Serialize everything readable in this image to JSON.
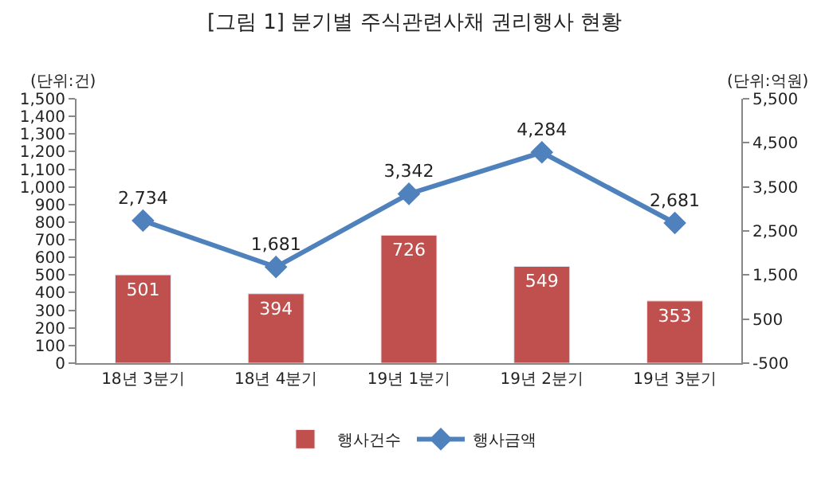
{
  "chart_data": {
    "type": "bar",
    "title": "[그림 1] 분기별 주식관련사채 권리행사 현황",
    "ylabel": "(단위:건)",
    "y2label": "(단위:억원)",
    "categories": [
      "18년 3분기",
      "18년 4분기",
      "19년 1분기",
      "19년 2분기",
      "19년 3분기"
    ],
    "series": [
      {
        "name": "행사건수",
        "color": "#c0504d",
        "values": [
          501,
          394,
          726,
          549,
          353
        ],
        "value_labels": [
          "501",
          "394",
          "726",
          "549",
          "353"
        ]
      },
      {
        "name": "행사금액",
        "type": "line",
        "axis": "y2",
        "color": "#4f81bd",
        "marker": "diamond",
        "values": [
          2734,
          1681,
          3342,
          4284,
          2681
        ],
        "value_labels": [
          "2,734",
          "1,681",
          "3,342",
          "4,284",
          "2,681"
        ]
      }
    ],
    "ylim": [
      0,
      1500
    ],
    "yticks": [
      0,
      100,
      200,
      300,
      400,
      500,
      600,
      700,
      800,
      900,
      {
        "value": 1000,
        "label": "1,000"
      },
      {
        "value": 1100,
        "label": "1,100"
      },
      {
        "value": 1200,
        "label": "1,200"
      },
      {
        "value": 1300,
        "label": "1,300"
      },
      {
        "value": 1400,
        "label": "1,400"
      },
      {
        "value": 1500,
        "label": "1,500"
      }
    ],
    "y2lim": [
      -500,
      5500
    ],
    "y2ticks": [
      -500,
      500,
      {
        "value": 1500,
        "label": "1,500"
      },
      {
        "value": 2500,
        "label": "2,500"
      },
      {
        "value": 3500,
        "label": "3,500"
      },
      {
        "value": 4500,
        "label": "4,500"
      },
      {
        "value": 5500,
        "label": "5,500"
      }
    ],
    "legend": "bottom"
  }
}
